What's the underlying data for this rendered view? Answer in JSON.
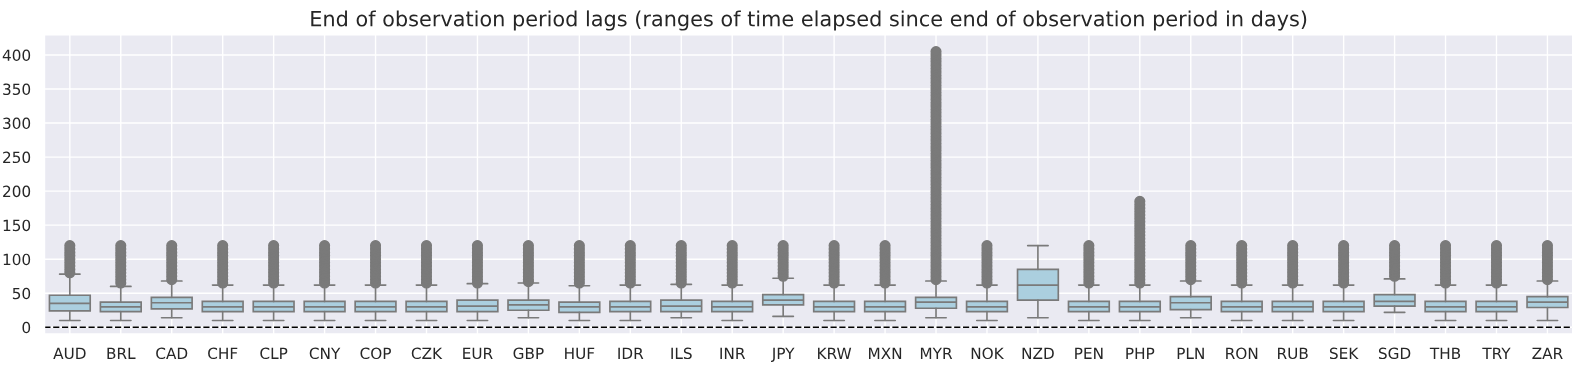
{
  "chart_data": {
    "type": "box",
    "title": "End of observation period lags (ranges of time elapsed since end of observation period in days)",
    "categories": [
      "AUD",
      "BRL",
      "CAD",
      "CHF",
      "CLP",
      "CNY",
      "COP",
      "CZK",
      "EUR",
      "GBP",
      "HUF",
      "IDR",
      "ILS",
      "INR",
      "JPY",
      "KRW",
      "MXN",
      "MYR",
      "NOK",
      "NZD",
      "PEN",
      "PHP",
      "PLN",
      "RON",
      "RUB",
      "SEK",
      "SGD",
      "THB",
      "TRY",
      "ZAR"
    ],
    "color": "#abcfdf",
    "boxes": [
      {
        "low": 10,
        "q1": 24,
        "median": 35,
        "q3": 47,
        "high": 78,
        "outliers": [
          80,
          85,
          90,
          95,
          100,
          105,
          110,
          115,
          120
        ]
      },
      {
        "low": 10,
        "q1": 23,
        "median": 30,
        "q3": 37,
        "high": 60,
        "outliers": [
          65,
          70,
          75,
          80,
          85,
          90,
          95,
          100,
          105,
          110,
          115,
          120
        ]
      },
      {
        "low": 14,
        "q1": 27,
        "median": 36,
        "q3": 44,
        "high": 68,
        "outliers": [
          70,
          75,
          80,
          85,
          90,
          95,
          100,
          105,
          110,
          115,
          120
        ]
      },
      {
        "low": 10,
        "q1": 23,
        "median": 30,
        "q3": 38,
        "high": 62,
        "outliers": [
          65,
          70,
          75,
          80,
          85,
          90,
          95,
          100,
          105,
          110,
          115,
          120
        ]
      },
      {
        "low": 10,
        "q1": 23,
        "median": 30,
        "q3": 38,
        "high": 62,
        "outliers": [
          65,
          70,
          75,
          80,
          85,
          90,
          95,
          100,
          105,
          110,
          115,
          120
        ]
      },
      {
        "low": 10,
        "q1": 23,
        "median": 30,
        "q3": 38,
        "high": 62,
        "outliers": [
          65,
          70,
          75,
          80,
          85,
          90,
          95,
          100,
          105,
          110,
          115,
          120
        ]
      },
      {
        "low": 10,
        "q1": 23,
        "median": 30,
        "q3": 38,
        "high": 62,
        "outliers": [
          65,
          70,
          75,
          80,
          85,
          90,
          95,
          100,
          105,
          110,
          115,
          120
        ]
      },
      {
        "low": 10,
        "q1": 23,
        "median": 30,
        "q3": 38,
        "high": 62,
        "outliers": [
          65,
          70,
          75,
          80,
          85,
          90,
          95,
          100,
          105,
          110,
          115,
          120
        ]
      },
      {
        "low": 10,
        "q1": 23,
        "median": 31,
        "q3": 40,
        "high": 64,
        "outliers": [
          65,
          70,
          75,
          80,
          85,
          90,
          95,
          100,
          105,
          110,
          115,
          120
        ]
      },
      {
        "low": 14,
        "q1": 25,
        "median": 33,
        "q3": 40,
        "high": 65,
        "outliers": [
          67,
          70,
          75,
          80,
          85,
          90,
          95,
          100,
          105,
          110,
          115,
          120
        ]
      },
      {
        "low": 10,
        "q1": 22,
        "median": 30,
        "q3": 37,
        "high": 61,
        "outliers": [
          65,
          70,
          75,
          80,
          85,
          90,
          95,
          100,
          105,
          110,
          115,
          120
        ]
      },
      {
        "low": 10,
        "q1": 23,
        "median": 30,
        "q3": 38,
        "high": 62,
        "outliers": [
          65,
          70,
          75,
          80,
          85,
          90,
          95,
          100,
          105,
          110,
          115,
          120
        ]
      },
      {
        "low": 14,
        "q1": 23,
        "median": 31,
        "q3": 40,
        "high": 63,
        "outliers": [
          65,
          70,
          75,
          80,
          85,
          90,
          95,
          100,
          105,
          110,
          115,
          120
        ]
      },
      {
        "low": 10,
        "q1": 23,
        "median": 30,
        "q3": 38,
        "high": 62,
        "outliers": [
          65,
          70,
          75,
          80,
          85,
          90,
          95,
          100,
          105,
          110,
          115,
          120
        ]
      },
      {
        "low": 16,
        "q1": 33,
        "median": 40,
        "q3": 48,
        "high": 72,
        "outliers": [
          75,
          80,
          85,
          90,
          95,
          100,
          105,
          110,
          115,
          120
        ]
      },
      {
        "low": 10,
        "q1": 23,
        "median": 30,
        "q3": 38,
        "high": 62,
        "outliers": [
          65,
          70,
          75,
          80,
          85,
          90,
          95,
          100,
          105,
          110,
          115,
          120
        ]
      },
      {
        "low": 10,
        "q1": 23,
        "median": 30,
        "q3": 38,
        "high": 62,
        "outliers": [
          65,
          70,
          75,
          80,
          85,
          90,
          95,
          100,
          105,
          110,
          115,
          120
        ]
      },
      {
        "low": 14,
        "q1": 28,
        "median": 37,
        "q3": 44,
        "high": 68,
        "outliers": [
          70,
          75,
          80,
          85,
          90,
          95,
          100,
          105,
          110,
          115,
          120,
          125,
          130,
          135,
          140,
          145,
          150,
          155,
          160,
          165,
          170,
          175,
          180,
          185,
          190,
          195,
          200,
          205,
          210,
          215,
          220,
          225,
          230,
          235,
          240,
          245,
          250,
          255,
          260,
          265,
          270,
          275,
          280,
          285,
          290,
          295,
          300,
          305,
          310,
          315,
          320,
          325,
          330,
          335,
          340,
          345,
          350,
          355,
          360,
          365,
          370,
          375,
          380,
          385,
          390,
          395,
          400,
          405
        ]
      },
      {
        "low": 10,
        "q1": 23,
        "median": 30,
        "q3": 38,
        "high": 62,
        "outliers": [
          65,
          70,
          75,
          80,
          85,
          90,
          95,
          100,
          105,
          110,
          115,
          120
        ]
      },
      {
        "low": 14,
        "q1": 40,
        "median": 62,
        "q3": 85,
        "high": 120
      },
      {
        "low": 10,
        "q1": 23,
        "median": 30,
        "q3": 38,
        "high": 62,
        "outliers": [
          65,
          70,
          75,
          80,
          85,
          90,
          95,
          100,
          105,
          110,
          115,
          120
        ]
      },
      {
        "low": 10,
        "q1": 23,
        "median": 30,
        "q3": 38,
        "high": 62,
        "outliers": [
          65,
          70,
          75,
          80,
          85,
          90,
          95,
          100,
          105,
          110,
          115,
          120,
          125,
          130,
          135,
          140,
          145,
          150,
          155,
          160,
          165,
          170,
          175,
          180,
          185
        ]
      },
      {
        "low": 14,
        "q1": 26,
        "median": 36,
        "q3": 45,
        "high": 68,
        "outliers": [
          70,
          75,
          80,
          85,
          90,
          95,
          100,
          105,
          110,
          115,
          120
        ]
      },
      {
        "low": 10,
        "q1": 23,
        "median": 30,
        "q3": 38,
        "high": 62,
        "outliers": [
          65,
          70,
          75,
          80,
          85,
          90,
          95,
          100,
          105,
          110,
          115,
          120
        ]
      },
      {
        "low": 10,
        "q1": 23,
        "median": 30,
        "q3": 38,
        "high": 62,
        "outliers": [
          65,
          70,
          75,
          80,
          85,
          90,
          95,
          100,
          105,
          110,
          115,
          120
        ]
      },
      {
        "low": 10,
        "q1": 23,
        "median": 30,
        "q3": 38,
        "high": 62,
        "outliers": [
          65,
          70,
          75,
          80,
          85,
          90,
          95,
          100,
          105,
          110,
          115,
          120
        ]
      },
      {
        "low": 22,
        "q1": 31,
        "median": 38,
        "q3": 48,
        "high": 71,
        "outliers": [
          75,
          80,
          85,
          90,
          95,
          100,
          105,
          110,
          115,
          120
        ]
      },
      {
        "low": 10,
        "q1": 23,
        "median": 30,
        "q3": 38,
        "high": 62,
        "outliers": [
          65,
          70,
          75,
          80,
          85,
          90,
          95,
          100,
          105,
          110,
          115,
          120
        ]
      },
      {
        "low": 10,
        "q1": 23,
        "median": 30,
        "q3": 38,
        "high": 62,
        "outliers": [
          65,
          70,
          75,
          80,
          85,
          90,
          95,
          100,
          105,
          110,
          115,
          120
        ]
      },
      {
        "low": 10,
        "q1": 29,
        "median": 37,
        "q3": 45,
        "high": 68,
        "outliers": [
          70,
          75,
          80,
          85,
          90,
          95,
          100,
          105,
          110,
          115,
          120
        ]
      }
    ],
    "ylim": [
      -10,
      430
    ],
    "yticks": [
      0,
      50,
      100,
      150,
      200,
      250,
      300,
      350,
      400
    ],
    "grid": true,
    "ref_lines": [
      {
        "axis": "y",
        "value": 0,
        "color": "#000000",
        "line_style": "dashed"
      }
    ]
  }
}
